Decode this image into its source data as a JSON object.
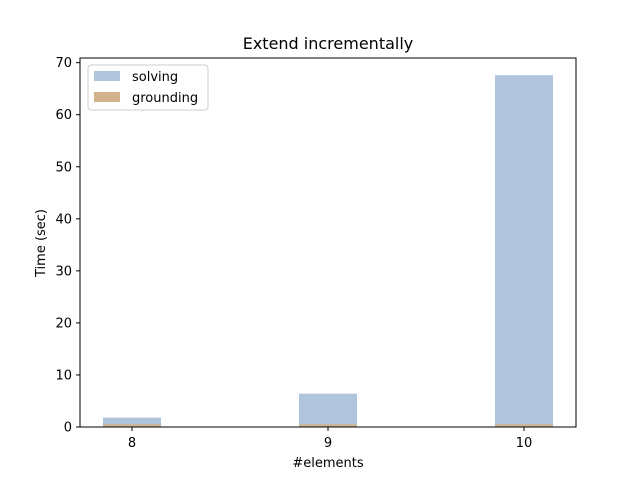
{
  "chart_data": {
    "type": "bar",
    "title": "Extend incrementally",
    "xlabel": "#elements",
    "ylabel": "Time (sec)",
    "categories": [
      "8",
      "9",
      "10"
    ],
    "series": [
      {
        "name": "solving",
        "values": [
          1.8,
          6.4,
          67.6
        ],
        "color": "#b0c4de"
      },
      {
        "name": "grounding",
        "values": [
          0.5,
          0.5,
          0.5
        ],
        "color": "#d2b48c"
      }
    ],
    "ylim": [
      0,
      70.9
    ],
    "yticks": [
      0,
      10,
      20,
      30,
      40,
      50,
      60,
      70
    ],
    "grid": false,
    "legend_position": "top-left"
  }
}
